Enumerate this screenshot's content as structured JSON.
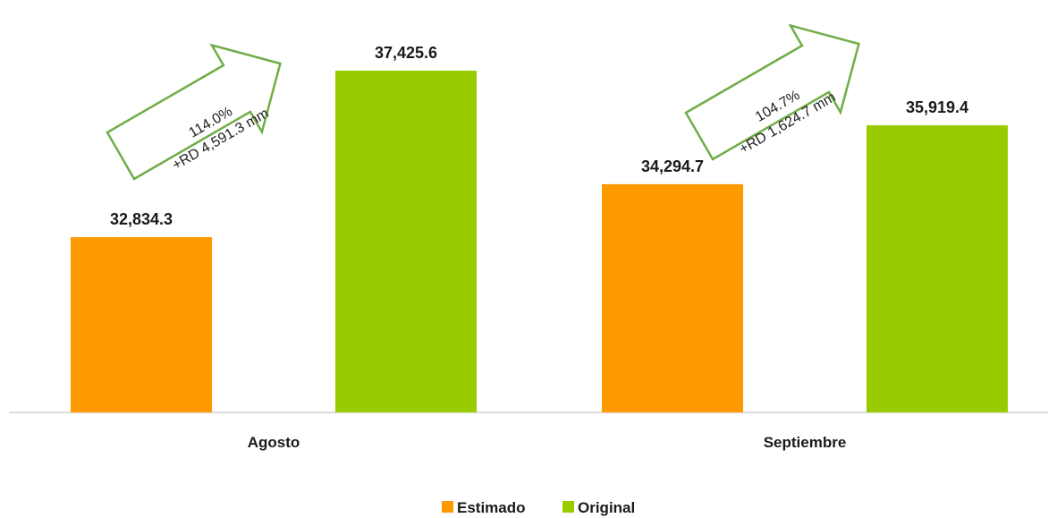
{
  "chart_data": {
    "type": "bar",
    "categories": [
      "Agosto",
      "Septiembre"
    ],
    "series": [
      {
        "name": "Estimado",
        "color": "#FF9900",
        "values": [
          32834.3,
          34294.7
        ],
        "labels": [
          "32,834.3",
          "34,294.7"
        ]
      },
      {
        "name": "Original",
        "color": "#99CC00",
        "values": [
          37425.6,
          35919.4
        ],
        "labels": [
          "37,425.6",
          "35,919.4"
        ]
      }
    ],
    "ylim": [
      28000,
      39000
    ],
    "grid": false,
    "legend": "bottom-center",
    "annotations": [
      {
        "category": "Agosto",
        "line1": "114.0%",
        "line2": "+RD 4,591.3 mm",
        "shape": "arrow-icon",
        "color": "#70AD47"
      },
      {
        "category": "Septiembre",
        "line1": "104.7%",
        "line2": "+RD 1,624.7  mm",
        "shape": "arrow-icon",
        "color": "#70AD47"
      }
    ]
  }
}
